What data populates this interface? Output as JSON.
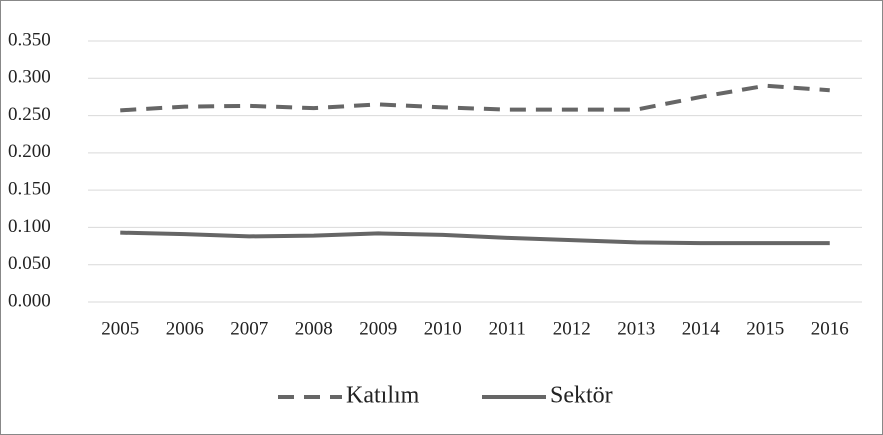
{
  "chart_data": {
    "type": "line",
    "categories": [
      "2005",
      "2006",
      "2007",
      "2008",
      "2009",
      "2010",
      "2011",
      "2012",
      "2013",
      "2014",
      "2015",
      "2016"
    ],
    "series": [
      {
        "name": "Katılım",
        "color": "#666666",
        "dashed": true,
        "values": [
          0.257,
          0.262,
          0.263,
          0.26,
          0.265,
          0.261,
          0.258,
          0.258,
          0.258,
          0.275,
          0.29,
          0.284
        ]
      },
      {
        "name": "Sektör",
        "color": "#666666",
        "dashed": false,
        "values": [
          0.093,
          0.091,
          0.088,
          0.089,
          0.092,
          0.09,
          0.086,
          0.083,
          0.08,
          0.079,
          0.079,
          0.079
        ]
      }
    ],
    "ylim": [
      0,
      0.35
    ],
    "yticks": [
      {
        "value": 0,
        "label": "0.000"
      },
      {
        "value": 0.05,
        "label": "0.050"
      },
      {
        "value": 0.1,
        "label": "0.100"
      },
      {
        "value": 0.15,
        "label": "0.150"
      },
      {
        "value": 0.2,
        "label": "0.200"
      },
      {
        "value": 0.25,
        "label": "0.250"
      },
      {
        "value": 0.3,
        "label": "0.300"
      },
      {
        "value": 0.35,
        "label": "0.350"
      }
    ],
    "grid": true,
    "legend": "bottom"
  }
}
